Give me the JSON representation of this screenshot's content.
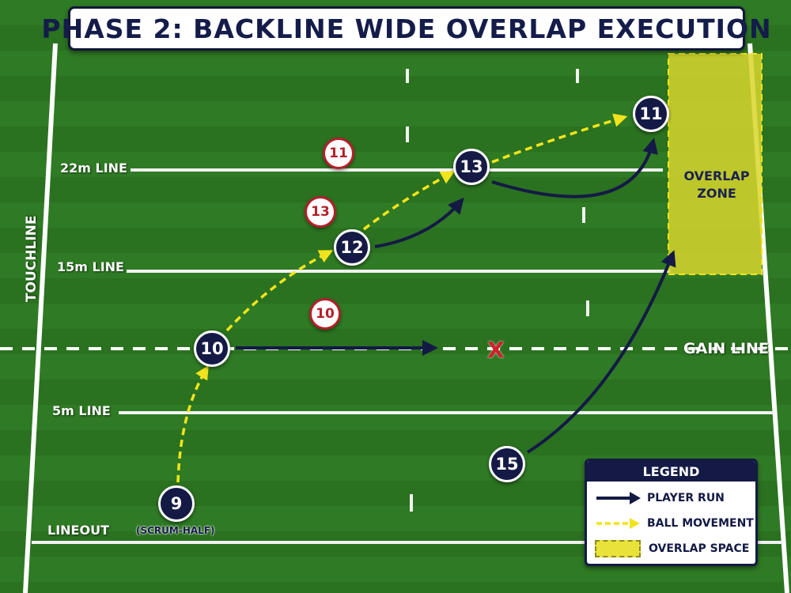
{
  "title": "PHASE 2: BACKLINE WIDE OVERLAP EXECUTION",
  "field_labels": {
    "line_22m": "22m LINE",
    "line_15m": "15m LINE",
    "line_5m": "5m LINE",
    "lineout": "LINEOUT",
    "touchline": "TOUCHLINE",
    "gain_line": "GAIN LINE"
  },
  "overlap_zone": {
    "label_line1": "OVERLAP",
    "label_line2": "ZONE"
  },
  "attackers": [
    {
      "number": "9",
      "role": "(SCRUM-HALF)"
    },
    {
      "number": "10"
    },
    {
      "number": "12"
    },
    {
      "number": "13"
    },
    {
      "number": "11"
    },
    {
      "number": "15"
    }
  ],
  "defenders": [
    {
      "number": "11"
    },
    {
      "number": "13"
    },
    {
      "number": "10"
    }
  ],
  "gap_marker": "X",
  "legend": {
    "title": "LEGEND",
    "player_run": "PLAYER RUN",
    "ball_movement": "BALL MOVEMENT",
    "overlap_space": "OVERLAP SPACE"
  },
  "colors": {
    "grass": "#2f7a24",
    "attacker": "#141a45",
    "defender": "#b3202a",
    "ball_pass": "#f2e41c",
    "overlap_zone": "#d8d62c"
  },
  "icons": {
    "player_run": "solid-arrow-icon",
    "ball_movement": "dashed-arrow-icon",
    "overlap_space": "yellow-dashed-box-icon",
    "gap": "red-x-icon"
  }
}
